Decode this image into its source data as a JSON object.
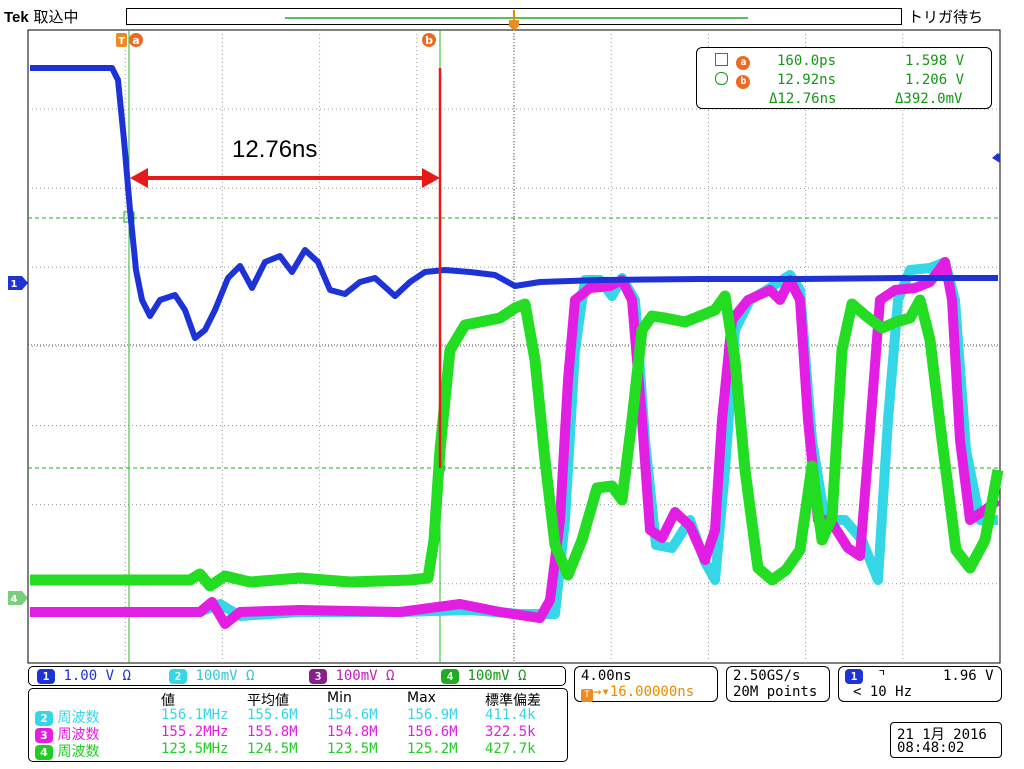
{
  "header": {
    "brand": "Tek",
    "mode": "取込中",
    "trigger_status": "トリガ待ち"
  },
  "cursors": {
    "a_label": "a",
    "b_label": "b",
    "trigger_marker": "T",
    "readout": {
      "row_a": {
        "icon": "square-icon",
        "label": "a",
        "time": "160.0ps",
        "volt": "1.598 V"
      },
      "row_b": {
        "icon": "circle-icon",
        "label": "b",
        "time": "12.92ns",
        "volt": "1.206 V"
      },
      "delta": {
        "time": "Δ12.76ns",
        "volt": "Δ392.0mV"
      }
    }
  },
  "annotation": {
    "text": "12.76ns",
    "color": "#e81919"
  },
  "channels": [
    {
      "num": "1",
      "scale": "1.00 V",
      "unit": "Ω",
      "color": "#1d33d6"
    },
    {
      "num": "2",
      "scale": "100mV",
      "unit": "Ω",
      "color": "#35d6e6"
    },
    {
      "num": "3",
      "scale": "100mV",
      "unit": "Ω",
      "color": "#e21ee2"
    },
    {
      "num": "4",
      "scale": "100mV",
      "unit": "Ω",
      "color": "#22cc22"
    }
  ],
  "horizontal": {
    "scale": "4.00ns",
    "position": "16.00000ns",
    "sample_rate": "2.50GS/s",
    "record": "20M points"
  },
  "trigger": {
    "channel": "1",
    "slope": "falling-edge-icon",
    "level": "1.96 V",
    "freq": "< 10 Hz"
  },
  "measurements": {
    "headers": [
      "値",
      "平均値",
      "Min",
      "Max",
      "標準偏差"
    ],
    "rows": [
      {
        "ch": "2",
        "name": "周波数",
        "values": [
          "156.1MHz",
          "155.6M",
          "154.6M",
          "156.9M",
          "411.4k"
        ],
        "color": "#35d6e6"
      },
      {
        "ch": "3",
        "name": "周波数",
        "values": [
          "155.2MHz",
          "155.8M",
          "154.8M",
          "156.6M",
          "322.5k"
        ],
        "color": "#e21ee2"
      },
      {
        "ch": "4",
        "name": "周波数",
        "values": [
          "123.5MHz",
          "124.5M",
          "123.5M",
          "125.2M",
          "427.7k"
        ],
        "color": "#22cc22"
      }
    ]
  },
  "datetime": {
    "date": "21 1月  2016",
    "time": "08:48:02"
  }
}
